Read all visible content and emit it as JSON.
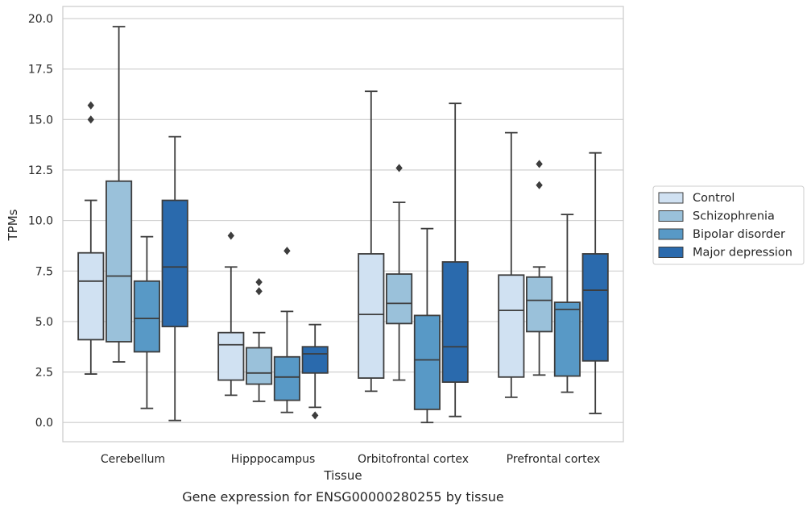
{
  "chart_data": {
    "type": "box",
    "caption": "Gene expression for ENSG00000280255 by tissue",
    "xlabel": "Tissue",
    "ylabel": "TPMs",
    "ylim": [
      -0.95,
      20.6
    ],
    "yticks": [
      0.0,
      2.5,
      5.0,
      7.5,
      10.0,
      12.5,
      15.0,
      17.5,
      20.0
    ],
    "ytick_labels": [
      "0.0",
      "2.5",
      "5.0",
      "7.5",
      "10.0",
      "12.5",
      "15.0",
      "17.5",
      "20.0"
    ],
    "grid": true,
    "legend_position": "right",
    "categories": [
      "Cerebellum",
      "Hipppocampus",
      "Orbitofrontal cortex",
      "Prefrontal cortex"
    ],
    "series": [
      {
        "name": "Control",
        "color": "#d0e1f2",
        "boxes": [
          {
            "whislo": 2.4,
            "q1": 4.1,
            "med": 7.0,
            "q3": 8.4,
            "whishi": 11.0,
            "fliers": [
              15.7,
              15.0
            ]
          },
          {
            "whislo": 1.35,
            "q1": 2.1,
            "med": 3.85,
            "q3": 4.45,
            "whishi": 7.7,
            "fliers": [
              9.25
            ]
          },
          {
            "whislo": 1.55,
            "q1": 2.2,
            "med": 5.35,
            "q3": 8.35,
            "whishi": 16.4,
            "fliers": []
          },
          {
            "whislo": 1.25,
            "q1": 2.25,
            "med": 5.55,
            "q3": 7.3,
            "whishi": 14.35,
            "fliers": []
          }
        ]
      },
      {
        "name": "Schizophrenia",
        "color": "#9ac1da",
        "boxes": [
          {
            "whislo": 3.0,
            "q1": 4.0,
            "med": 7.25,
            "q3": 11.95,
            "whishi": 19.6,
            "fliers": []
          },
          {
            "whislo": 1.05,
            "q1": 1.9,
            "med": 2.45,
            "q3": 3.7,
            "whishi": 4.45,
            "fliers": [
              6.95,
              6.5
            ]
          },
          {
            "whislo": 2.1,
            "q1": 4.9,
            "med": 5.9,
            "q3": 7.35,
            "whishi": 10.9,
            "fliers": [
              12.6
            ]
          },
          {
            "whislo": 2.35,
            "q1": 4.5,
            "med": 6.05,
            "q3": 7.2,
            "whishi": 7.7,
            "fliers": [
              12.8,
              11.75
            ]
          }
        ]
      },
      {
        "name": "Bipolar disorder",
        "color": "#5899c6",
        "boxes": [
          {
            "whislo": 0.7,
            "q1": 3.5,
            "med": 5.15,
            "q3": 7.0,
            "whishi": 9.2,
            "fliers": []
          },
          {
            "whislo": 0.5,
            "q1": 1.1,
            "med": 2.25,
            "q3": 3.25,
            "whishi": 5.5,
            "fliers": [
              8.5
            ]
          },
          {
            "whislo": 0.0,
            "q1": 0.65,
            "med": 3.1,
            "q3": 5.3,
            "whishi": 9.6,
            "fliers": []
          },
          {
            "whislo": 1.5,
            "q1": 2.3,
            "med": 5.6,
            "q3": 5.95,
            "whishi": 10.3,
            "fliers": []
          }
        ]
      },
      {
        "name": "Major depression",
        "color": "#2a6aad",
        "boxes": [
          {
            "whislo": 0.1,
            "q1": 4.75,
            "med": 7.7,
            "q3": 11.0,
            "whishi": 14.15,
            "fliers": []
          },
          {
            "whislo": 0.75,
            "q1": 2.45,
            "med": 3.4,
            "q3": 3.75,
            "whishi": 4.85,
            "fliers": [
              0.35
            ]
          },
          {
            "whislo": 0.3,
            "q1": 2.0,
            "med": 3.75,
            "q3": 7.95,
            "whishi": 15.8,
            "fliers": []
          },
          {
            "whislo": 0.45,
            "q1": 3.05,
            "med": 6.55,
            "q3": 8.35,
            "whishi": 13.35,
            "fliers": []
          }
        ]
      }
    ]
  }
}
